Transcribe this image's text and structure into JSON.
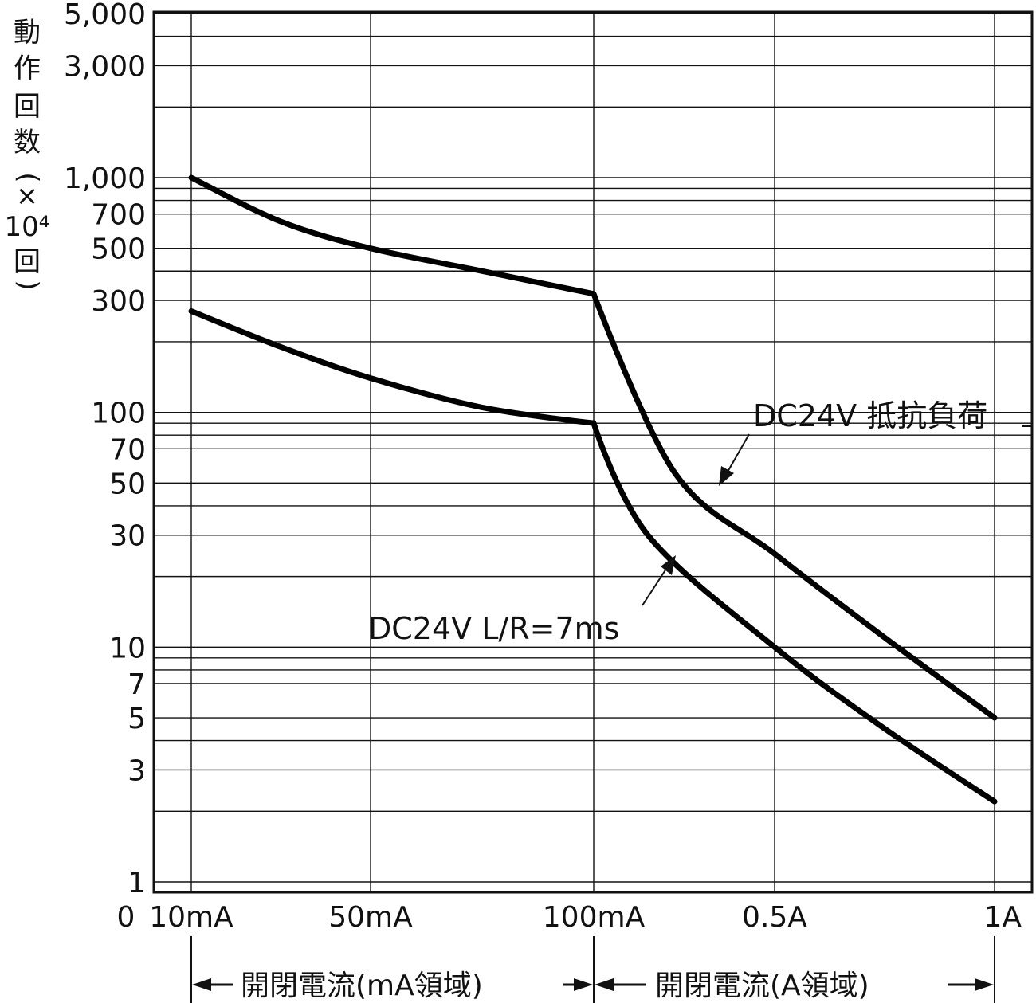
{
  "chart_data": {
    "type": "line",
    "ylabel": "動作回数(×10⁴回)",
    "ylabel_chars": [
      "動",
      "作",
      "回",
      "数",
      "(",
      "×",
      "10⁴",
      "回",
      ")"
    ],
    "y_scale": "log",
    "ylim": [
      1,
      5000
    ],
    "y_tick_labels": [
      {
        "value": 5000,
        "label": "5,000"
      },
      {
        "value": 3000,
        "label": "3,000"
      },
      {
        "value": 1000,
        "label": "1,000"
      },
      {
        "value": 700,
        "label": "700"
      },
      {
        "value": 500,
        "label": "500"
      },
      {
        "value": 300,
        "label": "300"
      },
      {
        "value": 100,
        "label": "100"
      },
      {
        "value": 70,
        "label": "70"
      },
      {
        "value": 50,
        "label": "50"
      },
      {
        "value": 30,
        "label": "30"
      },
      {
        "value": 10,
        "label": "10"
      },
      {
        "value": 7,
        "label": "7"
      },
      {
        "value": 5,
        "label": "5"
      },
      {
        "value": 3,
        "label": "3"
      },
      {
        "value": 1,
        "label": "1"
      }
    ],
    "x_origin_label": "0",
    "x_tick_labels": [
      "10mA",
      "50mA",
      "100mA",
      "0.5A",
      "1A"
    ],
    "grid": true,
    "series": [
      {
        "name": "DC24V 抵抗負荷",
        "x": [
          "10mA",
          "30mA",
          "50mA",
          "75mA",
          "100mA",
          "0.25A",
          "0.5A",
          "0.75A",
          "1A"
        ],
        "x_pos": [
          0,
          0.5,
          1,
          1.5,
          2,
          2.45,
          3,
          3.5,
          4
        ],
        "y": [
          1000,
          650,
          500,
          400,
          320,
          55,
          25,
          11,
          5
        ]
      },
      {
        "name": "DC24V L/R=7ms",
        "x": [
          "10mA",
          "30mA",
          "50mA",
          "75mA",
          "100mA",
          "0.2A",
          "0.5A",
          "0.75A",
          "1A"
        ],
        "x_pos": [
          0,
          0.5,
          1,
          1.5,
          2,
          2.3,
          3,
          3.5,
          4
        ],
        "y": [
          270,
          190,
          140,
          105,
          90,
          30,
          10,
          4.5,
          2.2
        ]
      }
    ],
    "annotations": [
      {
        "text": "DC24V 抵抗負荷",
        "series": "DC24V 抵抗負荷"
      },
      {
        "text": "DC24V L/R=7ms",
        "series": "DC24V L/R=7ms"
      }
    ],
    "x_ranges": [
      {
        "label": "開閉電流(mA領域)"
      },
      {
        "label": "開閉電流(A領域)"
      }
    ]
  }
}
